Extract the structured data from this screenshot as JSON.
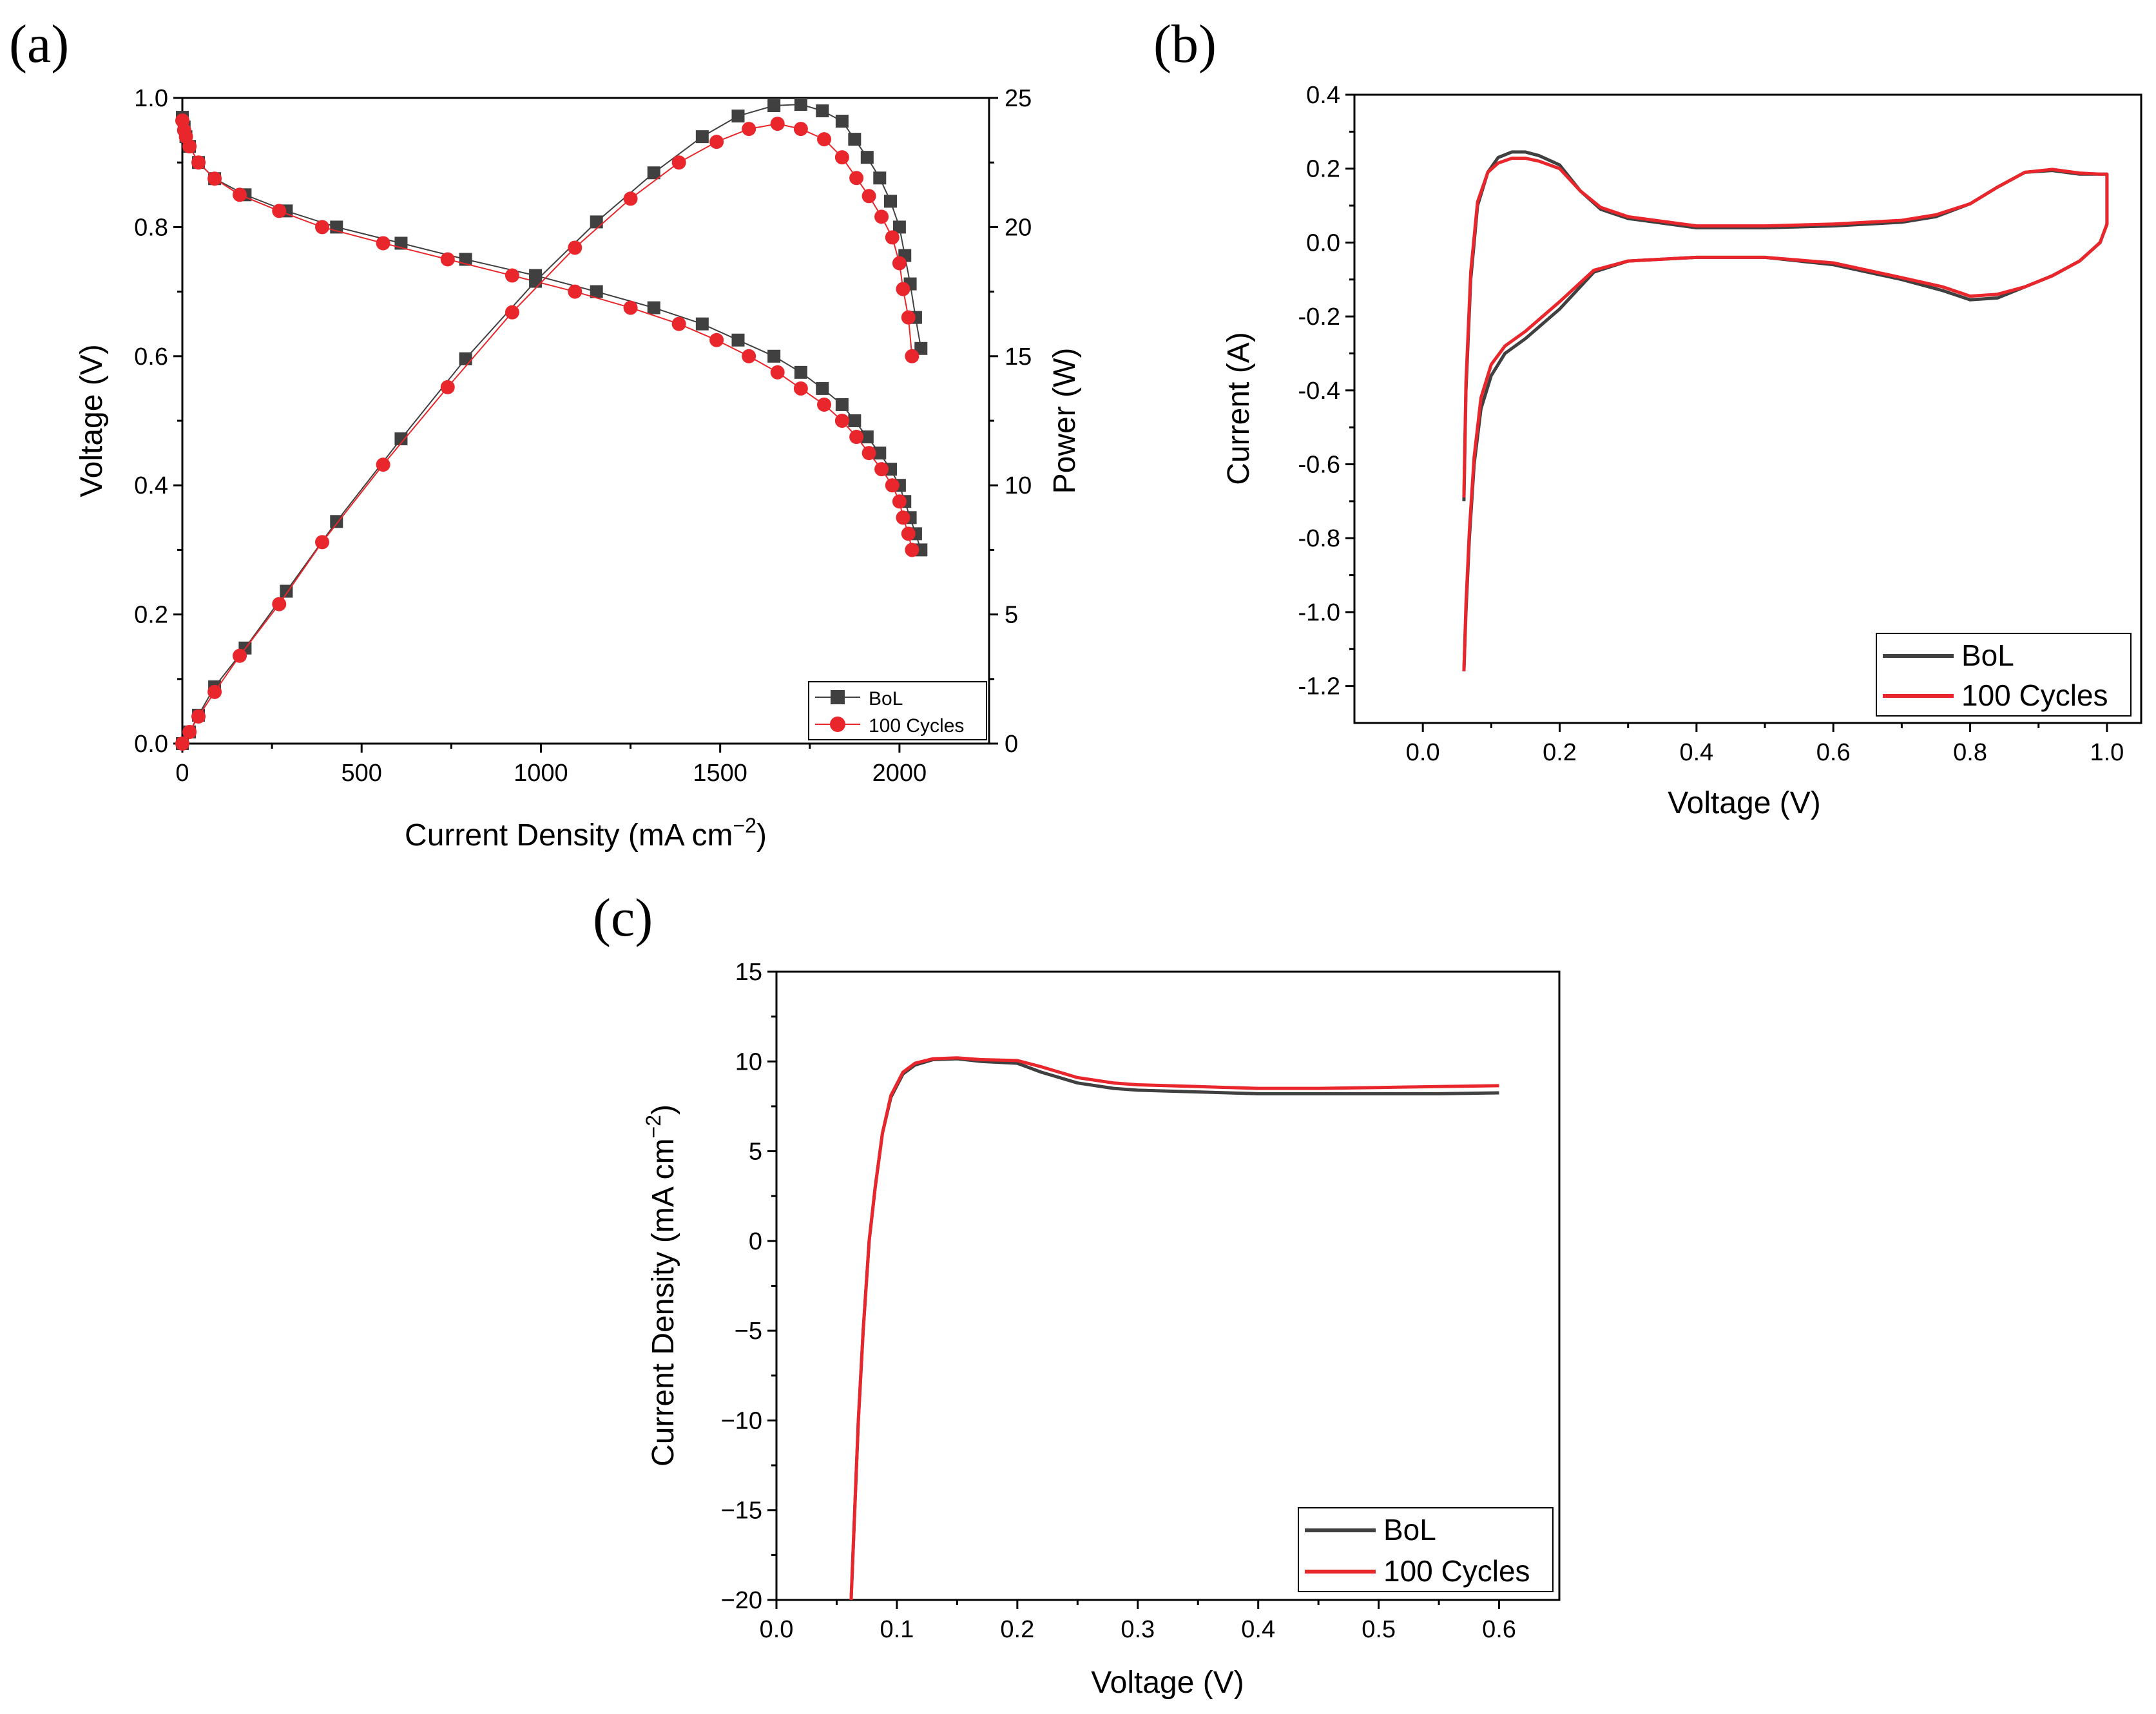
{
  "colors": {
    "bol": "#404040",
    "cycles": "#e8262b",
    "axis": "#000000"
  },
  "panels": {
    "a": {
      "label": "(a)",
      "xlabel": "Current Density (mA cm",
      "xlabel_sup": "−2",
      "xlabel_end": ")",
      "ylabel": "Voltage (V)",
      "y2label": "Power (W)",
      "legend": [
        "BoL",
        "100 Cycles"
      ]
    },
    "b": {
      "label": "(b)",
      "xlabel": "Voltage (V)",
      "ylabel": "Current (A)",
      "legend": [
        "BoL",
        "100 Cycles"
      ]
    },
    "c": {
      "label": "(c)",
      "xlabel": "Voltage (V)",
      "ylabel": "Current Density (mA cm",
      "ylabel_sup": "−2",
      "ylabel_end": ")",
      "legend": [
        "BoL",
        "100 Cycles"
      ]
    }
  },
  "chart_data": [
    {
      "id": "a",
      "type": "scatter",
      "title": "",
      "xlabel": "Current Density (mA cm−2)",
      "ylabel": "Voltage (V)",
      "y2label": "Power (W)",
      "xlim": [
        0,
        2250
      ],
      "ylim": [
        0,
        1.0
      ],
      "y2lim": [
        0,
        25
      ],
      "xticks": [
        0,
        500,
        1000,
        1500,
        2000
      ],
      "yticks": [
        0.0,
        0.2,
        0.4,
        0.6,
        0.8,
        1.0
      ],
      "y2ticks": [
        0,
        5,
        10,
        15,
        20,
        25
      ],
      "legend_position": "bottom-right",
      "series": [
        {
          "name": "BoL",
          "axis": "left",
          "marker": "square",
          "x": [
            0,
            5,
            10,
            20,
            45,
            90,
            175,
            290,
            430,
            610,
            790,
            985,
            1155,
            1315,
            1450,
            1550,
            1650,
            1725,
            1785,
            1840,
            1875,
            1910,
            1945,
            1975,
            2000,
            2015,
            2030,
            2045,
            2060
          ],
          "y": [
            0.97,
            0.955,
            0.94,
            0.925,
            0.9,
            0.875,
            0.85,
            0.825,
            0.8,
            0.775,
            0.75,
            0.725,
            0.7,
            0.675,
            0.65,
            0.625,
            0.6,
            0.575,
            0.55,
            0.525,
            0.5,
            0.475,
            0.45,
            0.425,
            0.4,
            0.375,
            0.35,
            0.325,
            0.3
          ]
        },
        {
          "name": "100 Cycles",
          "axis": "left",
          "marker": "circle",
          "x": [
            0,
            5,
            10,
            20,
            45,
            90,
            160,
            270,
            390,
            560,
            740,
            920,
            1095,
            1250,
            1385,
            1490,
            1580,
            1660,
            1725,
            1790,
            1840,
            1880,
            1915,
            1950,
            1980,
            2000,
            2010,
            2025,
            2035
          ],
          "y": [
            0.965,
            0.95,
            0.94,
            0.925,
            0.9,
            0.875,
            0.85,
            0.825,
            0.8,
            0.775,
            0.75,
            0.725,
            0.7,
            0.675,
            0.65,
            0.625,
            0.6,
            0.575,
            0.55,
            0.525,
            0.5,
            0.475,
            0.45,
            0.425,
            0.4,
            0.375,
            0.35,
            0.325,
            0.3
          ]
        },
        {
          "name": "BoL",
          "axis": "right",
          "marker": "square",
          "x": [
            0,
            20,
            45,
            90,
            175,
            290,
            430,
            610,
            790,
            985,
            1155,
            1315,
            1450,
            1550,
            1650,
            1725,
            1785,
            1840,
            1875,
            1910,
            1945,
            1975,
            2000,
            2015,
            2030,
            2045,
            2060
          ],
          "y": [
            0.0,
            0.45,
            1.1,
            2.2,
            3.7,
            5.9,
            8.6,
            11.8,
            14.9,
            17.9,
            20.2,
            22.1,
            23.5,
            24.3,
            24.7,
            24.75,
            24.5,
            24.1,
            23.4,
            22.7,
            21.9,
            21.0,
            20.0,
            18.9,
            17.8,
            16.5,
            15.3
          ]
        },
        {
          "name": "100 Cycles",
          "axis": "right",
          "marker": "circle",
          "x": [
            0,
            20,
            45,
            90,
            160,
            270,
            390,
            560,
            740,
            920,
            1095,
            1250,
            1385,
            1490,
            1580,
            1660,
            1725,
            1790,
            1840,
            1880,
            1915,
            1950,
            1980,
            2000,
            2010,
            2025,
            2035
          ],
          "y": [
            0.0,
            0.45,
            1.05,
            2.0,
            3.4,
            5.4,
            7.8,
            10.8,
            13.8,
            16.7,
            19.2,
            21.1,
            22.5,
            23.3,
            23.8,
            24.0,
            23.8,
            23.4,
            22.7,
            21.9,
            21.2,
            20.4,
            19.6,
            18.6,
            17.6,
            16.5,
            15.0
          ]
        }
      ]
    },
    {
      "id": "b",
      "type": "line",
      "title": "",
      "xlabel": "Voltage (V)",
      "ylabel": "Current (A)",
      "xlim": [
        -0.1,
        1.05
      ],
      "ylim": [
        -1.3,
        0.4
      ],
      "xticks": [
        0.0,
        0.2,
        0.4,
        0.6,
        0.8,
        1.0
      ],
      "xtick_labels": [
        "0.0",
        "0.2",
        "0.4",
        "0.6",
        "0.8",
        "1.0"
      ],
      "yticks": [
        0.4,
        0.2,
        0.0,
        -0.2,
        -0.4,
        -0.6,
        -0.8,
        -1.0,
        -1.2
      ],
      "ytick_labels": [
        "0.4",
        "0.2",
        "0.0",
        "-0.2",
        "-0.4",
        "-0.6",
        "-0.8",
        "-1.0",
        "-1.2"
      ],
      "legend_position": "bottom-right",
      "series": [
        {
          "name": "BoL",
          "x": [
            0.06,
            0.063,
            0.07,
            0.08,
            0.095,
            0.11,
            0.13,
            0.15,
            0.17,
            0.2,
            0.23,
            0.26,
            0.3,
            0.4,
            0.5,
            0.6,
            0.7,
            0.75,
            0.8,
            0.84,
            0.88,
            0.92,
            0.96,
            0.99,
            1.0,
            1.0,
            0.99,
            0.96,
            0.92,
            0.88,
            0.84,
            0.8,
            0.76,
            0.7,
            0.6,
            0.5,
            0.4,
            0.3,
            0.25,
            0.2,
            0.15,
            0.12,
            0.1,
            0.085,
            0.075,
            0.068,
            0.063,
            0.06
          ],
          "y": [
            -0.7,
            -0.4,
            -0.1,
            0.1,
            0.19,
            0.23,
            0.245,
            0.245,
            0.235,
            0.21,
            0.14,
            0.09,
            0.065,
            0.04,
            0.04,
            0.045,
            0.055,
            0.07,
            0.105,
            0.15,
            0.19,
            0.195,
            0.185,
            0.185,
            0.185,
            0.05,
            0.0,
            -0.05,
            -0.09,
            -0.12,
            -0.15,
            -0.155,
            -0.13,
            -0.1,
            -0.06,
            -0.04,
            -0.04,
            -0.05,
            -0.08,
            -0.18,
            -0.26,
            -0.3,
            -0.36,
            -0.45,
            -0.6,
            -0.8,
            -1.0,
            -1.16
          ]
        },
        {
          "name": "100 Cycles",
          "x": [
            0.06,
            0.063,
            0.07,
            0.08,
            0.095,
            0.11,
            0.13,
            0.15,
            0.17,
            0.2,
            0.23,
            0.26,
            0.3,
            0.4,
            0.5,
            0.6,
            0.7,
            0.75,
            0.8,
            0.84,
            0.88,
            0.92,
            0.96,
            0.99,
            1.0,
            1.0,
            0.99,
            0.96,
            0.92,
            0.88,
            0.84,
            0.8,
            0.76,
            0.7,
            0.6,
            0.5,
            0.4,
            0.3,
            0.25,
            0.2,
            0.15,
            0.12,
            0.1,
            0.085,
            0.075,
            0.068,
            0.063,
            0.06
          ],
          "y": [
            -0.69,
            -0.38,
            -0.08,
            0.11,
            0.19,
            0.215,
            0.228,
            0.228,
            0.22,
            0.2,
            0.14,
            0.095,
            0.07,
            0.045,
            0.045,
            0.05,
            0.06,
            0.075,
            0.105,
            0.15,
            0.19,
            0.198,
            0.188,
            0.185,
            0.185,
            0.05,
            0.0,
            -0.05,
            -0.09,
            -0.12,
            -0.14,
            -0.145,
            -0.12,
            -0.095,
            -0.055,
            -0.04,
            -0.04,
            -0.05,
            -0.075,
            -0.16,
            -0.24,
            -0.28,
            -0.33,
            -0.42,
            -0.58,
            -0.78,
            -0.98,
            -1.16
          ]
        }
      ]
    },
    {
      "id": "c",
      "type": "line",
      "title": "",
      "xlabel": "Voltage (V)",
      "ylabel": "Current Density (mA cm−2)",
      "xlim": [
        0.0,
        0.65
      ],
      "ylim": [
        -20,
        15
      ],
      "xticks": [
        0.0,
        0.1,
        0.2,
        0.3,
        0.4,
        0.5,
        0.6
      ],
      "xtick_labels": [
        "0.0",
        "0.1",
        "0.2",
        "0.3",
        "0.4",
        "0.5",
        "0.6"
      ],
      "yticks": [
        15,
        10,
        5,
        0,
        -5,
        -10,
        -15,
        -20
      ],
      "ytick_labels": [
        "15",
        "10",
        "5",
        "0",
        "−5",
        "−10",
        "−15",
        "−20"
      ],
      "legend_position": "bottom-right",
      "series": [
        {
          "name": "BoL",
          "x": [
            0.062,
            0.065,
            0.068,
            0.072,
            0.077,
            0.082,
            0.088,
            0.095,
            0.105,
            0.115,
            0.13,
            0.15,
            0.17,
            0.2,
            0.22,
            0.25,
            0.28,
            0.3,
            0.35,
            0.4,
            0.45,
            0.5,
            0.55,
            0.6
          ],
          "y": [
            -20,
            -15,
            -10,
            -5,
            0,
            3,
            6,
            8,
            9.3,
            9.8,
            10.1,
            10.15,
            10.0,
            9.9,
            9.4,
            8.8,
            8.5,
            8.4,
            8.3,
            8.2,
            8.2,
            8.2,
            8.2,
            8.25
          ]
        },
        {
          "name": "100 Cycles",
          "x": [
            0.062,
            0.065,
            0.068,
            0.072,
            0.077,
            0.082,
            0.088,
            0.095,
            0.105,
            0.115,
            0.13,
            0.15,
            0.17,
            0.2,
            0.22,
            0.25,
            0.28,
            0.3,
            0.35,
            0.4,
            0.45,
            0.5,
            0.55,
            0.6
          ],
          "y": [
            -20,
            -15,
            -10,
            -5,
            0,
            3,
            6,
            8.1,
            9.4,
            9.9,
            10.15,
            10.2,
            10.1,
            10.05,
            9.7,
            9.1,
            8.8,
            8.7,
            8.6,
            8.5,
            8.5,
            8.55,
            8.6,
            8.65
          ]
        }
      ]
    }
  ]
}
